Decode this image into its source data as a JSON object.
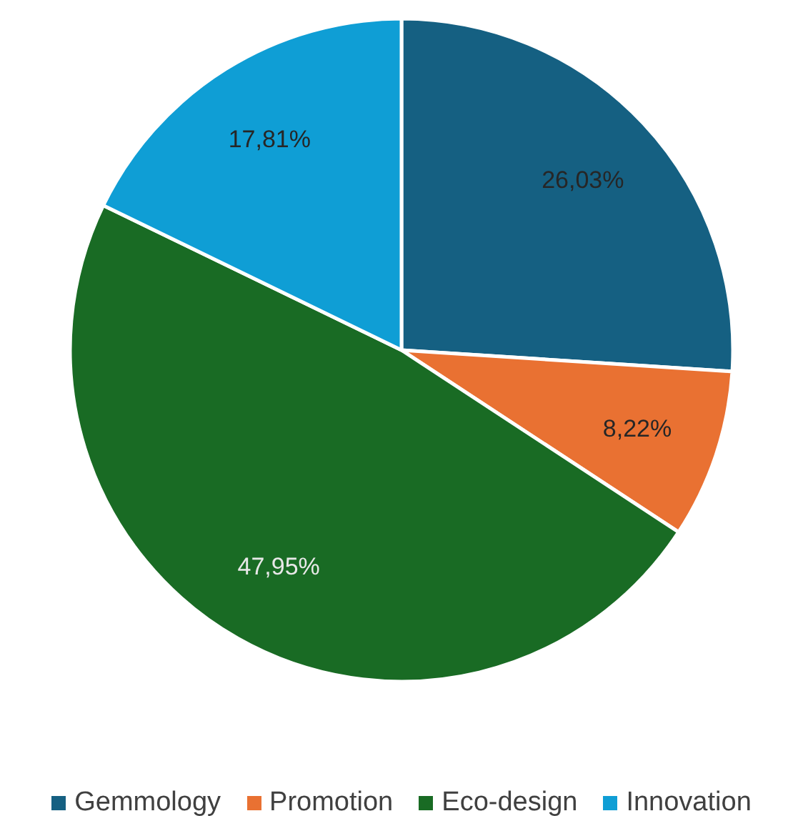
{
  "chart_data": {
    "type": "pie",
    "categories": [
      "Gemmology",
      "Promotion",
      "Eco-design",
      "Innovation"
    ],
    "values": [
      26.03,
      8.22,
      47.95,
      17.81
    ],
    "value_labels": [
      "26,03%",
      "8,22%",
      "47,95%",
      "17,81%"
    ],
    "colors": [
      "#156082",
      "#e97132",
      "#196b24",
      "#0f9ed5"
    ],
    "legend": "bottom"
  }
}
